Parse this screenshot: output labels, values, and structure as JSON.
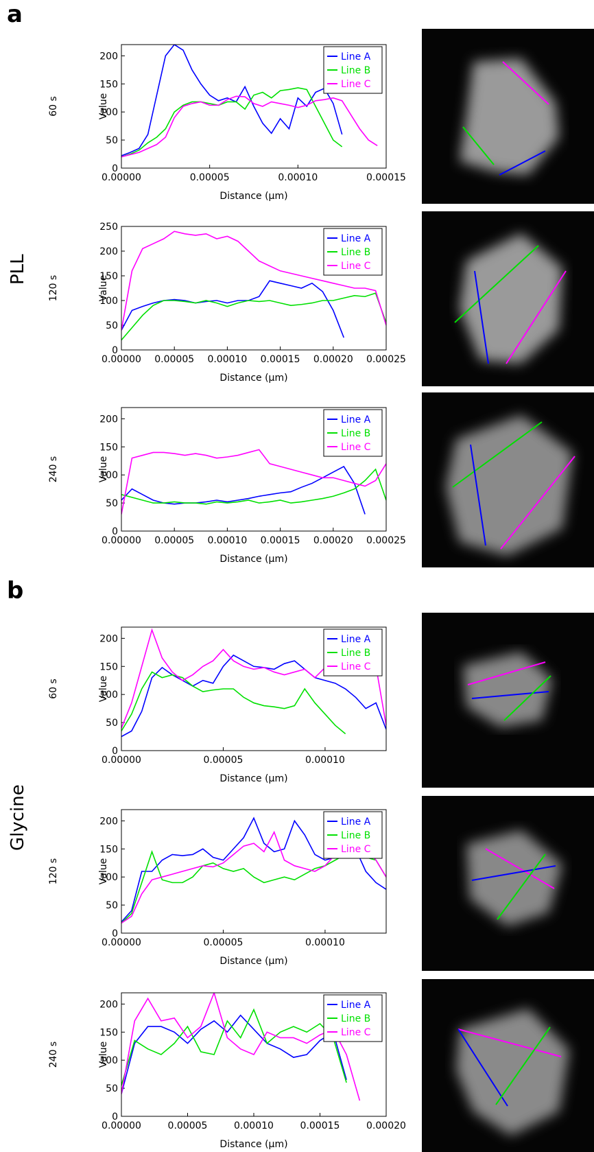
{
  "panels": [
    {
      "letter": "a",
      "group": "PLL"
    },
    {
      "letter": "b",
      "group": "Glycine"
    }
  ],
  "chart_data": [
    {
      "type": "line",
      "row_label": "60 s",
      "xlabel": "Distance (µm)",
      "ylabel": "Value",
      "legend": "upper right",
      "x": [
        0,
        5e-06,
        1e-05,
        1.5e-05,
        2e-05,
        2.5e-05,
        3e-05,
        3.5e-05,
        4e-05,
        4.5e-05,
        5e-05,
        5.5e-05,
        6e-05,
        6.5e-05,
        7e-05,
        7.5e-05,
        8e-05,
        8.5e-05,
        9e-05,
        9.5e-05,
        0.0001,
        0.000105,
        0.00011,
        0.000115,
        0.00012,
        0.000125,
        0.00013,
        0.000135,
        0.00014,
        0.000145
      ],
      "series": [
        {
          "name": "Line A",
          "color": "#0000ff",
          "values": [
            22,
            28,
            35,
            60,
            130,
            200,
            220,
            210,
            175,
            150,
            130,
            120,
            125,
            118,
            145,
            110,
            80,
            62,
            88,
            70,
            125,
            110,
            135,
            142,
            115,
            60,
            null,
            null,
            null,
            null
          ]
        },
        {
          "name": "Line B",
          "color": "#00e000",
          "values": [
            20,
            25,
            32,
            45,
            55,
            70,
            100,
            112,
            118,
            118,
            115,
            112,
            118,
            118,
            105,
            130,
            135,
            125,
            138,
            140,
            143,
            140,
            110,
            80,
            50,
            38,
            null,
            null,
            null,
            null
          ]
        },
        {
          "name": "Line C",
          "color": "#ff00ff",
          "values": [
            20,
            24,
            28,
            35,
            42,
            55,
            90,
            110,
            115,
            118,
            112,
            112,
            122,
            128,
            127,
            115,
            110,
            118,
            115,
            112,
            108,
            112,
            120,
            122,
            125,
            120,
            95,
            70,
            50,
            40
          ]
        }
      ],
      "xlim": [
        0,
        0.00015
      ],
      "xticks": [
        {
          "value": 0,
          "label": "0.00000"
        },
        {
          "value": 5e-05,
          "label": "0.00005"
        },
        {
          "value": 0.0001,
          "label": "0.00010"
        },
        {
          "value": 0.00015,
          "label": "0.00015"
        }
      ],
      "ylim": [
        0,
        220
      ],
      "yticks": [
        0,
        50,
        100,
        150,
        200
      ]
    },
    {
      "type": "line",
      "row_label": "120 s",
      "xlabel": "Distance (µm)",
      "ylabel": "Value",
      "legend": "upper right",
      "x": [
        0,
        1e-05,
        2e-05,
        3e-05,
        4e-05,
        5e-05,
        6e-05,
        7e-05,
        8e-05,
        9e-05,
        0.0001,
        0.00011,
        0.00012,
        0.00013,
        0.00014,
        0.00015,
        0.00016,
        0.00017,
        0.00018,
        0.00019,
        0.0002,
        0.00021,
        0.00022,
        0.00023,
        0.00024,
        0.00025
      ],
      "series": [
        {
          "name": "Line A",
          "color": "#0000ff",
          "values": [
            40,
            80,
            88,
            95,
            100,
            102,
            100,
            95,
            98,
            100,
            95,
            100,
            100,
            108,
            140,
            135,
            130,
            125,
            135,
            118,
            80,
            25,
            null,
            null,
            null,
            null
          ]
        },
        {
          "name": "Line B",
          "color": "#00e000",
          "values": [
            20,
            45,
            70,
            90,
            100,
            100,
            98,
            95,
            100,
            95,
            88,
            95,
            100,
            98,
            100,
            95,
            90,
            92,
            95,
            100,
            100,
            105,
            110,
            108,
            115,
            55
          ]
        },
        {
          "name": "Line C",
          "color": "#ff00ff",
          "values": [
            40,
            160,
            205,
            215,
            225,
            240,
            235,
            232,
            235,
            225,
            230,
            220,
            200,
            180,
            170,
            160,
            155,
            150,
            145,
            140,
            135,
            130,
            125,
            125,
            120,
            50
          ]
        }
      ],
      "xlim": [
        0,
        0.00025
      ],
      "xticks": [
        {
          "value": 0,
          "label": "0.00000"
        },
        {
          "value": 5e-05,
          "label": "0.00005"
        },
        {
          "value": 0.0001,
          "label": "0.00010"
        },
        {
          "value": 0.00015,
          "label": "0.00015"
        },
        {
          "value": 0.0002,
          "label": "0.00020"
        },
        {
          "value": 0.00025,
          "label": "0.00025"
        }
      ],
      "ylim": [
        0,
        250
      ],
      "yticks": [
        0,
        50,
        100,
        150,
        200,
        250
      ]
    },
    {
      "type": "line",
      "row_label": "240 s",
      "xlabel": "Distance (µm)",
      "ylabel": "Value",
      "legend": "upper right",
      "x": [
        0,
        1e-05,
        2e-05,
        3e-05,
        4e-05,
        5e-05,
        6e-05,
        7e-05,
        8e-05,
        9e-05,
        0.0001,
        0.00011,
        0.00012,
        0.00013,
        0.00014,
        0.00015,
        0.00016,
        0.00017,
        0.00018,
        0.00019,
        0.0002,
        0.00021,
        0.00022,
        0.00023,
        0.00024,
        0.00025
      ],
      "series": [
        {
          "name": "Line A",
          "color": "#0000ff",
          "values": [
            55,
            75,
            65,
            55,
            50,
            48,
            50,
            50,
            52,
            55,
            52,
            55,
            58,
            62,
            65,
            68,
            70,
            78,
            85,
            95,
            105,
            115,
            85,
            30,
            null,
            null
          ]
        },
        {
          "name": "Line B",
          "color": "#00e000",
          "values": [
            65,
            60,
            55,
            50,
            50,
            52,
            50,
            50,
            48,
            52,
            50,
            52,
            55,
            50,
            52,
            55,
            50,
            52,
            55,
            58,
            62,
            68,
            75,
            90,
            110,
            55
          ]
        },
        {
          "name": "Line C",
          "color": "#ff00ff",
          "values": [
            30,
            130,
            135,
            140,
            140,
            138,
            135,
            138,
            135,
            130,
            132,
            135,
            140,
            145,
            120,
            115,
            110,
            105,
            100,
            95,
            95,
            90,
            85,
            80,
            90,
            120
          ]
        }
      ],
      "xlim": [
        0,
        0.00025
      ],
      "xticks": [
        {
          "value": 0,
          "label": "0.00000"
        },
        {
          "value": 5e-05,
          "label": "0.00005"
        },
        {
          "value": 0.0001,
          "label": "0.00010"
        },
        {
          "value": 0.00015,
          "label": "0.00015"
        },
        {
          "value": 0.0002,
          "label": "0.00020"
        },
        {
          "value": 0.00025,
          "label": "0.00025"
        }
      ],
      "ylim": [
        0,
        220
      ],
      "yticks": [
        0,
        50,
        100,
        150,
        200
      ]
    },
    {
      "type": "line",
      "row_label": "60 s",
      "xlabel": "Distance (µm)",
      "ylabel": "Value",
      "legend": "upper right",
      "x": [
        0,
        5e-06,
        1e-05,
        1.5e-05,
        2e-05,
        2.5e-05,
        3e-05,
        3.5e-05,
        4e-05,
        4.5e-05,
        5e-05,
        5.5e-05,
        6e-05,
        6.5e-05,
        7e-05,
        7.5e-05,
        8e-05,
        8.5e-05,
        9e-05,
        9.5e-05,
        0.0001,
        0.000105,
        0.00011,
        0.000115,
        0.00012,
        0.000125,
        0.00013
      ],
      "series": [
        {
          "name": "Line A",
          "color": "#0000ff",
          "values": [
            25,
            35,
            70,
            130,
            148,
            135,
            125,
            115,
            125,
            120,
            150,
            170,
            160,
            150,
            148,
            145,
            155,
            160,
            145,
            130,
            125,
            120,
            110,
            95,
            75,
            85,
            38
          ]
        },
        {
          "name": "Line B",
          "color": "#00e000",
          "values": [
            35,
            65,
            110,
            140,
            130,
            135,
            130,
            115,
            105,
            108,
            110,
            110,
            95,
            85,
            80,
            78,
            75,
            80,
            110,
            85,
            65,
            45,
            30,
            null,
            null,
            null,
            null
          ]
        },
        {
          "name": "Line C",
          "color": "#ff00ff",
          "values": [
            40,
            85,
            150,
            215,
            165,
            140,
            125,
            135,
            150,
            160,
            180,
            160,
            150,
            145,
            148,
            140,
            135,
            140,
            145,
            130,
            148,
            140,
            145,
            150,
            155,
            150,
            45
          ]
        }
      ],
      "xlim": [
        0,
        0.00013
      ],
      "xticks": [
        {
          "value": 0,
          "label": "0.00000"
        },
        {
          "value": 5e-05,
          "label": "0.00005"
        },
        {
          "value": 0.0001,
          "label": "0.00010"
        }
      ],
      "ylim": [
        0,
        220
      ],
      "yticks": [
        0,
        50,
        100,
        150,
        200
      ]
    },
    {
      "type": "line",
      "row_label": "120 s",
      "xlabel": "Distance (µm)",
      "ylabel": "Value",
      "legend": "upper right",
      "x": [
        0,
        5e-06,
        1e-05,
        1.5e-05,
        2e-05,
        2.5e-05,
        3e-05,
        3.5e-05,
        4e-05,
        4.5e-05,
        5e-05,
        5.5e-05,
        6e-05,
        6.5e-05,
        7e-05,
        7.5e-05,
        8e-05,
        8.5e-05,
        9e-05,
        9.5e-05,
        0.0001,
        0.000105,
        0.00011,
        0.000115,
        0.00012,
        0.000125,
        0.00013
      ],
      "series": [
        {
          "name": "Line A",
          "color": "#0000ff",
          "values": [
            20,
            40,
            110,
            110,
            130,
            140,
            138,
            140,
            150,
            135,
            130,
            150,
            170,
            205,
            160,
            145,
            150,
            200,
            175,
            140,
            130,
            135,
            145,
            150,
            110,
            90,
            78
          ]
        },
        {
          "name": "Line B",
          "color": "#00e000",
          "values": [
            18,
            35,
            90,
            145,
            95,
            90,
            90,
            100,
            120,
            125,
            115,
            110,
            115,
            100,
            90,
            95,
            100,
            95,
            105,
            115,
            120,
            130,
            140,
            145,
            135,
            130,
            100
          ]
        },
        {
          "name": "Line C",
          "color": "#ff00ff",
          "values": [
            18,
            30,
            70,
            95,
            100,
            105,
            110,
            115,
            120,
            118,
            125,
            140,
            155,
            160,
            145,
            180,
            130,
            120,
            115,
            110,
            120,
            140,
            150,
            145,
            150,
            130,
            100
          ]
        }
      ],
      "xlim": [
        0,
        0.00013
      ],
      "xticks": [
        {
          "value": 0,
          "label": "0.00000"
        },
        {
          "value": 5e-05,
          "label": "0.00005"
        },
        {
          "value": 0.0001,
          "label": "0.00010"
        }
      ],
      "ylim": [
        0,
        220
      ],
      "yticks": [
        0,
        50,
        100,
        150,
        200
      ]
    },
    {
      "type": "line",
      "row_label": "240 s",
      "xlabel": "Distance (µm)",
      "ylabel": "Value",
      "legend": "upper right",
      "x": [
        0,
        1e-05,
        2e-05,
        3e-05,
        4e-05,
        5e-05,
        6e-05,
        7e-05,
        8e-05,
        9e-05,
        0.0001,
        0.00011,
        0.00012,
        0.00013,
        0.00014,
        0.00015,
        0.00016,
        0.00017,
        0.00018
      ],
      "series": [
        {
          "name": "Line A",
          "color": "#0000ff",
          "values": [
            40,
            130,
            160,
            160,
            150,
            130,
            155,
            170,
            150,
            180,
            155,
            130,
            120,
            105,
            110,
            135,
            150,
            65,
            null
          ]
        },
        {
          "name": "Line B",
          "color": "#00e000",
          "values": [
            55,
            135,
            120,
            110,
            130,
            160,
            115,
            110,
            170,
            140,
            190,
            130,
            150,
            160,
            150,
            165,
            140,
            60,
            null
          ]
        },
        {
          "name": "Line C",
          "color": "#ff00ff",
          "values": [
            40,
            170,
            210,
            170,
            175,
            140,
            160,
            220,
            140,
            120,
            110,
            150,
            140,
            140,
            130,
            145,
            155,
            110,
            28
          ]
        }
      ],
      "xlim": [
        0,
        0.0002
      ],
      "xticks": [
        {
          "value": 0,
          "label": "0.00000"
        },
        {
          "value": 5e-05,
          "label": "0.00005"
        },
        {
          "value": 0.0001,
          "label": "0.00010"
        },
        {
          "value": 0.00015,
          "label": "0.00015"
        },
        {
          "value": 0.0002,
          "label": "0.00020"
        }
      ],
      "ylim": [
        0,
        220
      ],
      "yticks": [
        0,
        50,
        100,
        150,
        200
      ]
    }
  ]
}
